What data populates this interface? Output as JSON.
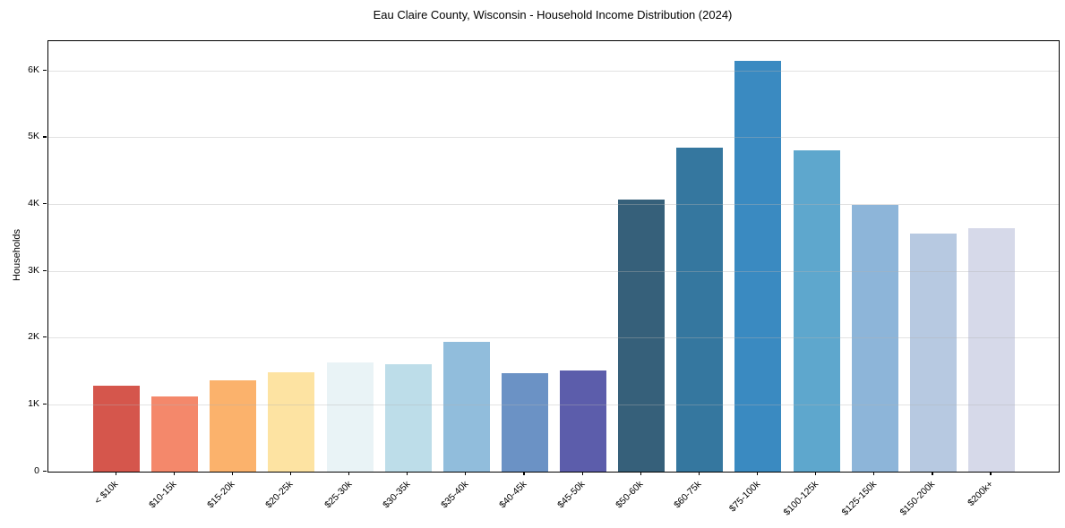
{
  "chart_data": {
    "type": "bar",
    "title": "Eau Claire County, Wisconsin - Household Income Distribution (2024)",
    "xlabel": "",
    "ylabel": "Households",
    "categories": [
      "< $10k",
      "$10-15k",
      "$15-20k",
      "$20-25k",
      "$25-30k",
      "$30-35k",
      "$35-40k",
      "$40-45k",
      "$45-50k",
      "$50-60k",
      "$60-75k",
      "$75-100k",
      "$100-125k",
      "$125-150k",
      "$150-200k",
      "$200k+"
    ],
    "values": [
      1290,
      1120,
      1370,
      1490,
      1640,
      1610,
      1950,
      1480,
      1520,
      4080,
      4850,
      6150,
      4810,
      4000,
      3560,
      3650
    ],
    "bar_colors": [
      "#d5564c",
      "#f4886b",
      "#fbb26c",
      "#fde3a2",
      "#e9f3f6",
      "#bddde9",
      "#91bddc",
      "#6b92c5",
      "#5c5dab",
      "#36607a",
      "#35779f",
      "#3a8ac1",
      "#5ea7cd",
      "#8db5d9",
      "#b7c9e1",
      "#d6d9e9"
    ],
    "ylim": [
      0,
      6446
    ],
    "yticks": [
      {
        "value": 0,
        "label": "0"
      },
      {
        "value": 1000,
        "label": "1K"
      },
      {
        "value": 2000,
        "label": "2K"
      },
      {
        "value": 3000,
        "label": "3K"
      },
      {
        "value": 4000,
        "label": "4K"
      },
      {
        "value": 5000,
        "label": "5K"
      },
      {
        "value": 6000,
        "label": "6K"
      }
    ],
    "grid": "horizontal",
    "legend": "none",
    "x_tick_rotation_deg": 45
  },
  "colors": {
    "background": "#ffffff",
    "spine": "#000000",
    "gridline": "#e2e2e2",
    "text": "#000000"
  }
}
